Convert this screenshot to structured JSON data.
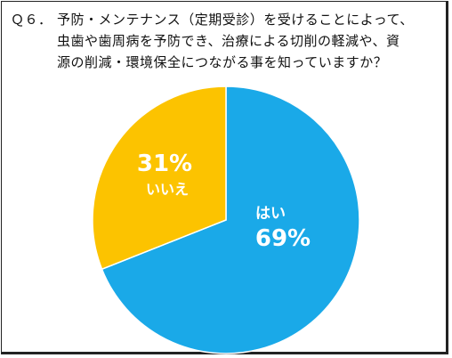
{
  "question": {
    "prefix": "Ｑ６．",
    "lines": [
      "予防・メンテナンス（定期受診）を受けることによって、",
      "虫歯や歯周病を予防でき、治療による切削の軽減や、資",
      "源の削減・環境保全につながる事を知っていますか？"
    ]
  },
  "chart_data": {
    "type": "pie",
    "slices": [
      {
        "label": "はい",
        "value": 69,
        "value_label": "69%",
        "color": "#1aa9e8"
      },
      {
        "label": "いいえ",
        "value": 31,
        "value_label": "31%",
        "color": "#fcc300"
      }
    ],
    "start": "12 o'clock",
    "direction": "clockwise",
    "legend": "none"
  }
}
